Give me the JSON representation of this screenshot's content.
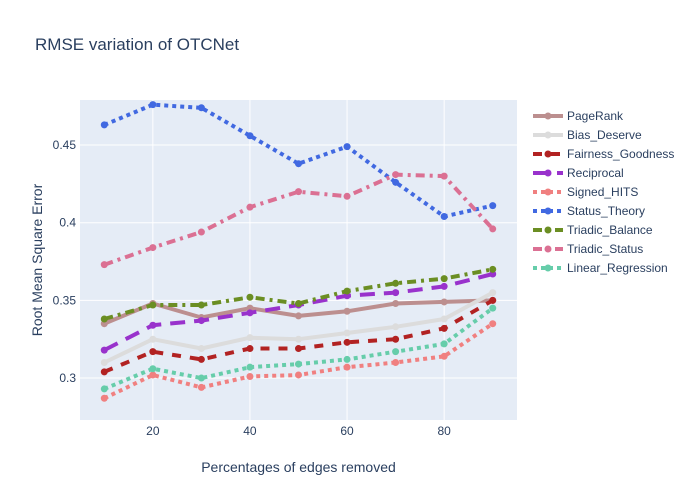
{
  "chart_data": {
    "type": "line",
    "title": "RMSE variation of OTCNet",
    "xlabel": "Percentages of edges removed",
    "ylabel": "Root Mean Square Error",
    "x": [
      10,
      20,
      30,
      40,
      50,
      60,
      70,
      80,
      90
    ],
    "xlim": [
      5,
      95
    ],
    "ylim": [
      0.273,
      0.479
    ],
    "xticks": [
      20,
      40,
      60,
      80
    ],
    "xtick_labels": [
      "20",
      "40",
      "60",
      "80"
    ],
    "yticks": [
      0.3,
      0.35,
      0.4,
      0.45
    ],
    "ytick_labels": [
      "0.3",
      "0.35",
      "0.4",
      "0.45"
    ],
    "grid": true,
    "legend_position": "right",
    "series": [
      {
        "name": "PageRank",
        "color": "#bc8f8f",
        "dash": "solid",
        "values": [
          0.335,
          0.348,
          0.339,
          0.345,
          0.34,
          0.343,
          0.348,
          0.349,
          0.35
        ]
      },
      {
        "name": "Bias_Deserve",
        "color": "#dcdcdc",
        "dash": "solid",
        "values": [
          0.31,
          0.325,
          0.319,
          0.326,
          0.325,
          0.329,
          0.333,
          0.338,
          0.355
        ]
      },
      {
        "name": "Fairness_Goodness",
        "color": "#b22222",
        "dash": "dash",
        "values": [
          0.304,
          0.317,
          0.312,
          0.319,
          0.319,
          0.323,
          0.325,
          0.332,
          0.35
        ]
      },
      {
        "name": "Reciprocal",
        "color": "#9932cc",
        "dash": "longdash",
        "values": [
          0.318,
          0.334,
          0.337,
          0.342,
          0.347,
          0.353,
          0.355,
          0.359,
          0.367
        ]
      },
      {
        "name": "Signed_HITS",
        "color": "#f08080",
        "dash": "dot",
        "values": [
          0.287,
          0.302,
          0.294,
          0.301,
          0.302,
          0.307,
          0.31,
          0.314,
          0.335
        ]
      },
      {
        "name": "Status_Theory",
        "color": "#4169e1",
        "dash": "dot",
        "values": [
          0.463,
          0.476,
          0.474,
          0.456,
          0.438,
          0.449,
          0.426,
          0.404,
          0.411
        ]
      },
      {
        "name": "Triadic_Balance",
        "color": "#6b8e23",
        "dash": "dashdot",
        "values": [
          0.338,
          0.347,
          0.347,
          0.352,
          0.348,
          0.356,
          0.361,
          0.364,
          0.37
        ]
      },
      {
        "name": "Triadic_Status",
        "color": "#db7093",
        "dash": "dashdot",
        "values": [
          0.373,
          0.384,
          0.394,
          0.41,
          0.42,
          0.417,
          0.431,
          0.43,
          0.396
        ]
      },
      {
        "name": "Linear_Regression",
        "color": "#66cdaa",
        "dash": "dot",
        "values": [
          0.293,
          0.306,
          0.3,
          0.307,
          0.309,
          0.312,
          0.317,
          0.322,
          0.345
        ]
      }
    ]
  }
}
